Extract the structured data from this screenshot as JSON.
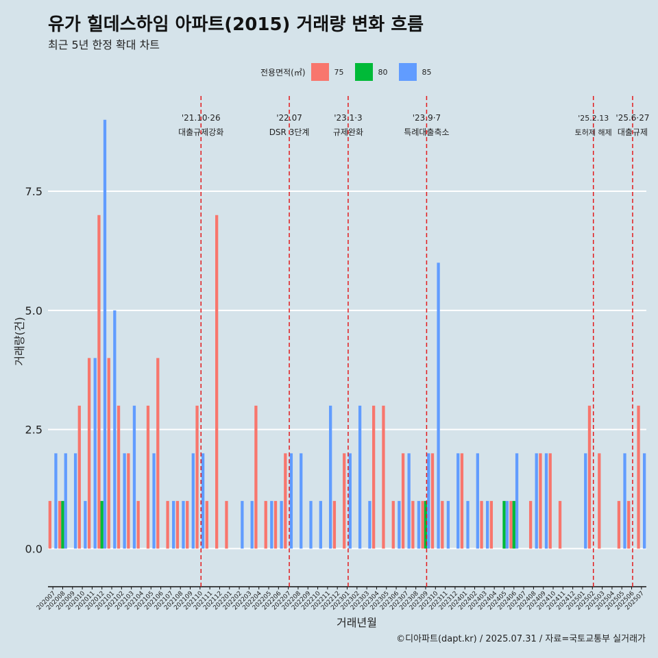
{
  "title": "유가 힐데스하임 아파트(2015) 거래량 변화 흐름",
  "subtitle": "최근 5년 한정 확대 차트",
  "caption": "©디아파트(dapt.kr) / 2025.07.31 / 자료=국토교통부 실거래가",
  "legend": {
    "title": "전용면적(㎡)",
    "items": [
      {
        "label": "75",
        "color": "#f8766d"
      },
      {
        "label": "80",
        "color": "#00ba38"
      },
      {
        "label": "85",
        "color": "#619cff"
      }
    ]
  },
  "chart_data": {
    "type": "bar",
    "title": "유가 힐데스하임 아파트(2015) 거래량 변화 흐름",
    "xlabel": "거래년월",
    "ylabel": "거래량(건)",
    "ylim": [
      -0.8,
      9.5
    ],
    "yticks": [
      0.0,
      2.5,
      5.0,
      7.5
    ],
    "ytick_labels": [
      "0.0",
      "2.5",
      "5.0",
      "7.5"
    ],
    "categories": [
      "202007",
      "202008",
      "202009",
      "202010",
      "202011",
      "202012",
      "202101",
      "202102",
      "202103",
      "202104",
      "202105",
      "202106",
      "202107",
      "202108",
      "202109",
      "202110",
      "202111",
      "202112",
      "202201",
      "202202",
      "202203",
      "202204",
      "202205",
      "202206",
      "202207",
      "202208",
      "202209",
      "202210",
      "202211",
      "202212",
      "202301",
      "202302",
      "202303",
      "202304",
      "202305",
      "202306",
      "202307",
      "202308",
      "202309",
      "202310",
      "202311",
      "202312",
      "202401",
      "202402",
      "202403",
      "202404",
      "202405",
      "202406",
      "202407",
      "202408",
      "202409",
      "202410",
      "202411",
      "202412",
      "202501",
      "202502",
      "202503",
      "202504",
      "202505",
      "202506",
      "202507"
    ],
    "series": [
      {
        "name": "75",
        "color": "#f8766d",
        "values": [
          1,
          1,
          0,
          3,
          4,
          7,
          4,
          3,
          2,
          1,
          3,
          4,
          1,
          1,
          1,
          3,
          1,
          7,
          1,
          0,
          0,
          3,
          1,
          1,
          2,
          0,
          0,
          0,
          0,
          1,
          2,
          0,
          0,
          3,
          3,
          1,
          2,
          1,
          1,
          2,
          1,
          0,
          2,
          0,
          1,
          1,
          0,
          1,
          0,
          1,
          2,
          2,
          1,
          0,
          0,
          3,
          2,
          0,
          1,
          1,
          3
        ]
      },
      {
        "name": "80",
        "color": "#00ba38",
        "values": [
          0,
          1,
          0,
          0,
          0,
          1,
          0,
          0,
          0,
          0,
          0,
          0,
          0,
          0,
          0,
          0,
          0,
          0,
          0,
          0,
          0,
          0,
          0,
          0,
          0,
          0,
          0,
          0,
          0,
          0,
          0,
          0,
          0,
          0,
          0,
          0,
          0,
          0,
          1,
          0,
          0,
          0,
          0,
          0,
          0,
          0,
          1,
          1,
          0,
          0,
          0,
          0,
          0,
          0,
          0,
          0,
          0,
          0,
          0,
          0,
          0
        ]
      },
      {
        "name": "85",
        "color": "#619cff",
        "values": [
          2,
          2,
          2,
          1,
          4,
          9,
          5,
          2,
          3,
          0,
          2,
          0,
          1,
          1,
          2,
          2,
          0,
          0,
          0,
          1,
          1,
          0,
          1,
          1,
          2,
          2,
          1,
          1,
          3,
          0,
          2,
          3,
          1,
          0,
          0,
          1,
          2,
          1,
          2,
          6,
          1,
          2,
          1,
          2,
          1,
          0,
          1,
          2,
          0,
          2,
          2,
          0,
          0,
          0,
          2,
          0,
          0,
          0,
          2,
          0,
          2
        ]
      }
    ],
    "events": [
      {
        "position": 15.1,
        "date": "'21.10·26",
        "label": "대출규제강화"
      },
      {
        "position": 24.1,
        "date": "'22.07",
        "label": "DSR 3단계"
      },
      {
        "position": 30.1,
        "date": "'23.1·3",
        "label": "규제완화"
      },
      {
        "position": 38.1,
        "date": "'23.9·7",
        "label": "특례대출축소"
      },
      {
        "position": 55.1,
        "date": "'25.2.13",
        "label": "토허제 해제"
      },
      {
        "position": 59.1,
        "date": "'25.6·27",
        "label": "대출규제"
      }
    ]
  }
}
